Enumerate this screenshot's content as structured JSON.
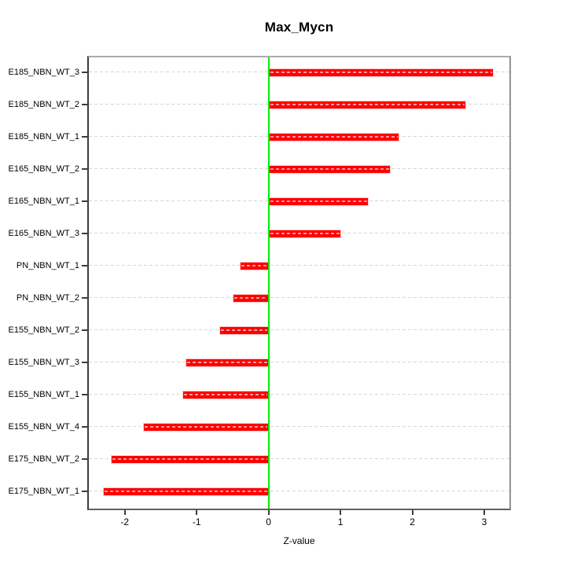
{
  "chart_data": {
    "type": "bar",
    "orientation": "horizontal",
    "title": "Max_Mycn",
    "xlabel": "Z-value",
    "categories": [
      "E185_NBN_WT_3",
      "E185_NBN_WT_2",
      "E185_NBN_WT_1",
      "E165_NBN_WT_2",
      "E165_NBN_WT_1",
      "E165_NBN_WT_3",
      "PN_NBN_WT_1",
      "PN_NBN_WT_2",
      "E155_NBN_WT_2",
      "E155_NBN_WT_3",
      "E155_NBN_WT_1",
      "E155_NBN_WT_4",
      "E175_NBN_WT_2",
      "E175_NBN_WT_1"
    ],
    "values": [
      3.13,
      2.75,
      1.82,
      1.7,
      1.39,
      1.01,
      -0.4,
      -0.5,
      -0.68,
      -1.16,
      -1.2,
      -1.75,
      -2.19,
      -2.3
    ],
    "xlim": [
      -2.5,
      3.35
    ],
    "x_ticks": [
      -2,
      -1,
      0,
      1,
      2,
      3
    ],
    "zero_reference": 0,
    "grid": "dashed horizontal line through each bar row",
    "legend": "none",
    "colors": {
      "bar": "#ff0000",
      "bar_border": "#ffc8c8",
      "bar_dash": "rgba(255,255,255,0.6)",
      "zero_line": "#00ee00",
      "gridline": "#d6d6d6",
      "axis": "#3d3d3d"
    }
  }
}
